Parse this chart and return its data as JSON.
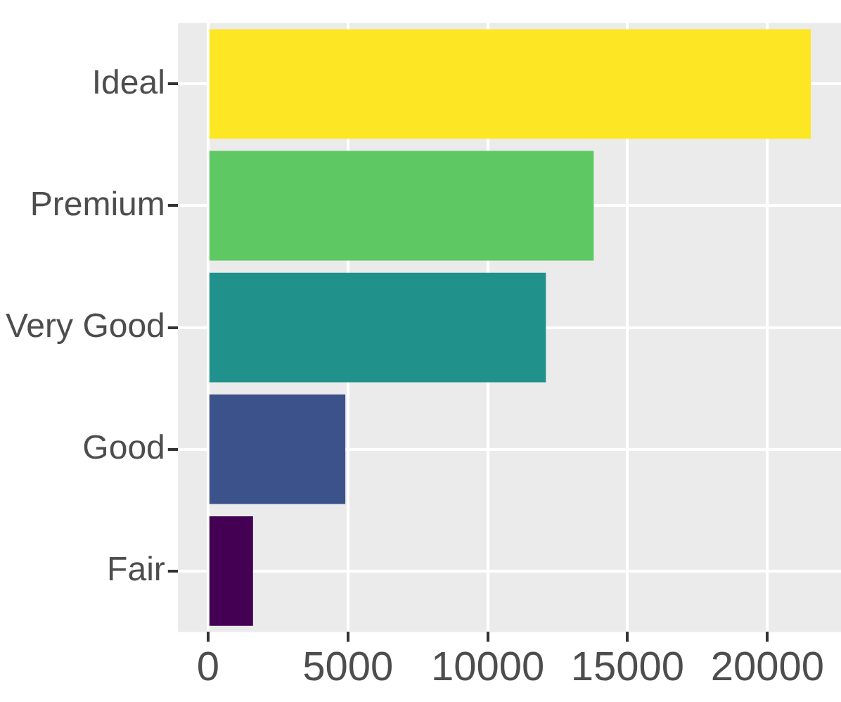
{
  "chart_data": {
    "type": "bar",
    "orientation": "horizontal",
    "categories": [
      "Ideal",
      "Premium",
      "Very Good",
      "Good",
      "Fair"
    ],
    "values": [
      21550,
      13790,
      12080,
      4910,
      1610
    ],
    "colors": [
      "#fde725",
      "#5ec962",
      "#21918c",
      "#3b528b",
      "#440154"
    ],
    "xlim": [
      -1080,
      22630
    ],
    "xticks": [
      0,
      5000,
      10000,
      15000,
      20000
    ],
    "grid": true,
    "legend": false
  }
}
